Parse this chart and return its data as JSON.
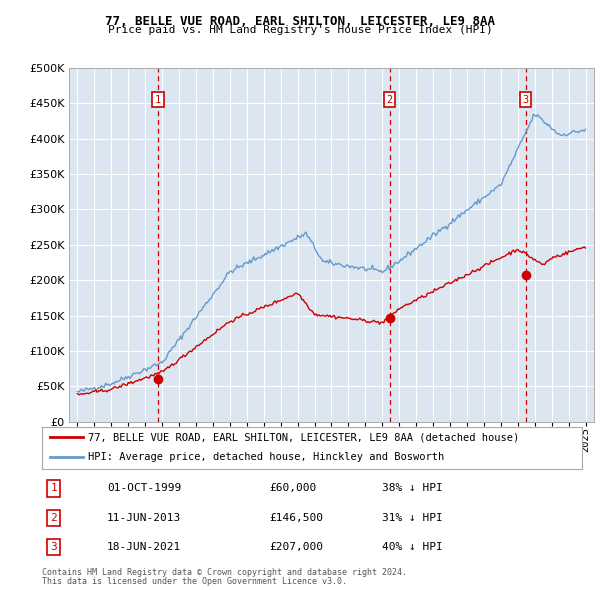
{
  "title1": "77, BELLE VUE ROAD, EARL SHILTON, LEICESTER, LE9 8AA",
  "title2": "Price paid vs. HM Land Registry's House Price Index (HPI)",
  "legend_line1": "77, BELLE VUE ROAD, EARL SHILTON, LEICESTER, LE9 8AA (detached house)",
  "legend_line2": "HPI: Average price, detached house, Hinckley and Bosworth",
  "sales": [
    {
      "num": 1,
      "date_label": "01-OCT-1999",
      "price_label": "£60,000",
      "pct_label": "38% ↓ HPI",
      "year": 1999.75,
      "price": 60000
    },
    {
      "num": 2,
      "date_label": "11-JUN-2013",
      "price_label": "£146,500",
      "pct_label": "31% ↓ HPI",
      "year": 2013.44,
      "price": 146500
    },
    {
      "num": 3,
      "date_label": "18-JUN-2021",
      "price_label": "£207,000",
      "pct_label": "40% ↓ HPI",
      "year": 2021.46,
      "price": 207000
    }
  ],
  "red_color": "#cc0000",
  "blue_color": "#6699cc",
  "bg_color": "#dce6f1",
  "grid_color": "#ffffff",
  "vline_color": "#cc0000",
  "box_color": "#cc0000",
  "footnote1": "Contains HM Land Registry data © Crown copyright and database right 2024.",
  "footnote2": "This data is licensed under the Open Government Licence v3.0.",
  "ylim": [
    0,
    500000
  ],
  "xlim": [
    1994.5,
    2025.5
  ]
}
